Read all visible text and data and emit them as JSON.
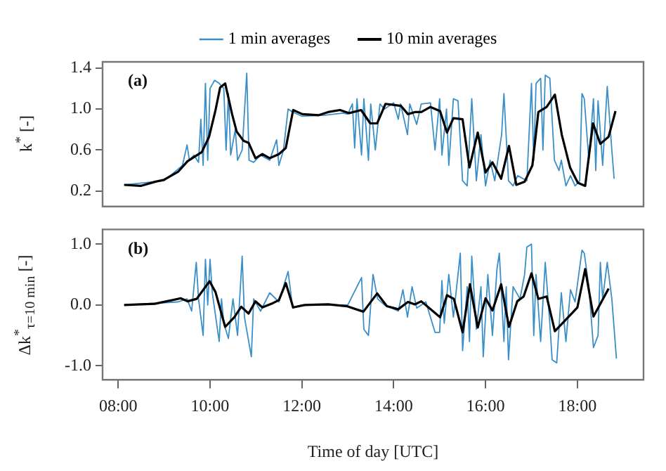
{
  "chart_data": [
    {
      "type": "line",
      "legend": "top",
      "ylabel": "k$^{*}$ [-]",
      "annotations": [
        "(a)"
      ],
      "xlim": [
        7.66,
        19.44
      ],
      "ylim": [
        0.05,
        1.46
      ],
      "yticks": [
        0.2,
        0.6,
        {
          "value": 1,
          "label": "1.0"
        },
        1.4
      ],
      "tick_labels": "y",
      "grid": false,
      "series": [
        {
          "name": "1 min averages",
          "color": "#3a8fc8",
          "x": [
            8.13,
            9.0,
            9.4,
            9.5,
            9.55,
            9.65,
            9.75,
            9.8,
            9.85,
            9.9,
            9.95,
            10.0,
            10.1,
            10.2,
            10.3,
            10.35,
            10.4,
            10.45,
            10.55,
            10.6,
            10.7,
            10.8,
            10.85,
            10.95,
            11.1,
            11.3,
            11.45,
            11.5,
            11.6,
            11.7,
            11.8,
            12.0,
            12.5,
            12.9,
            13.0,
            13.1,
            13.15,
            13.2,
            13.3,
            13.35,
            13.45,
            13.5,
            13.6,
            13.7,
            13.8,
            14.0,
            14.1,
            14.15,
            14.3,
            14.35,
            14.5,
            14.6,
            14.8,
            14.9,
            15.0,
            15.05,
            15.15,
            15.2,
            15.3,
            15.4,
            15.5,
            15.6,
            15.7,
            15.8,
            15.9,
            16.0,
            16.1,
            16.2,
            16.35,
            16.4,
            16.5,
            16.6,
            16.7,
            16.9,
            17.0,
            17.05,
            17.1,
            17.2,
            17.25,
            17.3,
            17.4,
            17.45,
            17.5,
            17.6,
            17.65,
            17.75,
            17.85,
            17.95,
            18.05,
            18.1,
            18.15,
            18.25,
            18.35,
            18.4,
            18.45,
            18.55,
            18.65,
            18.75,
            18.8
          ],
          "values": [
            0.26,
            0.3,
            0.45,
            0.65,
            0.5,
            0.55,
            0.48,
            0.9,
            0.45,
            1.25,
            0.5,
            1.2,
            1.28,
            1.25,
            1.2,
            0.6,
            1.15,
            0.55,
            0.8,
            0.5,
            0.6,
            1.35,
            0.5,
            0.48,
            0.55,
            0.5,
            0.7,
            0.45,
            0.6,
            1.0,
            0.97,
            0.93,
            0.94,
            0.96,
            0.95,
            1.05,
            0.62,
            1.1,
            0.55,
            1.1,
            0.5,
            1.05,
            0.6,
            1.05,
            1.0,
            1.06,
            0.9,
            1.05,
            0.75,
            1.05,
            0.85,
            1.05,
            1.06,
            0.6,
            1.1,
            0.55,
            1.0,
            0.45,
            1.1,
            1.08,
            0.3,
            0.25,
            1.1,
            0.3,
            0.75,
            0.25,
            0.5,
            0.3,
            0.75,
            1.15,
            0.3,
            0.25,
            0.35,
            0.3,
            1.25,
            0.5,
            1.25,
            1.3,
            0.6,
            1.33,
            1.3,
            0.9,
            0.5,
            0.4,
            0.5,
            0.25,
            0.35,
            0.25,
            0.3,
            1.15,
            1.1,
            0.5,
            1.1,
            0.4,
            1.08,
            0.45,
            1.22,
            0.6,
            0.32
          ]
        },
        {
          "name": "10 min averages",
          "color": "#000000",
          "x": [
            8.13,
            8.49,
            8.8,
            9.0,
            9.31,
            9.51,
            9.82,
            9.98,
            10.12,
            10.22,
            10.33,
            10.48,
            10.58,
            10.73,
            10.84,
            10.99,
            11.14,
            11.3,
            11.5,
            11.65,
            11.81,
            12.01,
            12.37,
            12.57,
            12.83,
            13.03,
            13.29,
            13.49,
            13.64,
            13.82,
            14.16,
            14.31,
            14.46,
            14.6,
            14.8,
            15.01,
            15.16,
            15.3,
            15.5,
            15.65,
            15.83,
            16.0,
            16.15,
            16.34,
            16.51,
            16.67,
            16.85,
            17.02,
            17.15,
            17.33,
            17.51,
            17.66,
            17.84,
            18.01,
            18.17,
            18.34,
            18.5,
            18.68,
            18.83
          ],
          "values": [
            0.26,
            0.25,
            0.29,
            0.31,
            0.39,
            0.49,
            0.58,
            0.73,
            0.99,
            1.21,
            1.25,
            0.95,
            0.78,
            0.69,
            0.67,
            0.52,
            0.56,
            0.52,
            0.56,
            0.62,
            0.99,
            0.95,
            0.94,
            0.97,
            0.99,
            0.96,
            0.99,
            0.86,
            0.86,
            1.05,
            1.03,
            0.95,
            0.97,
            0.97,
            1.02,
            0.98,
            0.77,
            0.91,
            0.9,
            0.43,
            0.77,
            0.38,
            0.48,
            0.32,
            0.64,
            0.26,
            0.29,
            0.45,
            0.97,
            1.02,
            1.14,
            0.75,
            0.43,
            0.28,
            0.25,
            0.86,
            0.66,
            0.73,
            0.98
          ]
        }
      ]
    },
    {
      "type": "line",
      "ylabel": "Δk$^{*}$$_{τ=10 min}$ [-]",
      "xlabel": "Time of day [UTC]",
      "annotations": [
        "(b)"
      ],
      "xlim": [
        7.66,
        19.44
      ],
      "xticks": [
        {
          "value": 8,
          "label": "08:00"
        },
        {
          "value": 10,
          "label": "10:00"
        },
        {
          "value": 12,
          "label": "12:00"
        },
        {
          "value": 14,
          "label": "14:00"
        },
        {
          "value": 16,
          "label": "16:00"
        },
        {
          "value": 18,
          "label": "18:00"
        }
      ],
      "ylim": [
        -1.23,
        1.24
      ],
      "yticks": [
        {
          "value": -1,
          "label": "-1.0"
        },
        {
          "value": 0,
          "label": "0.0"
        },
        {
          "value": 1,
          "label": "1.0"
        }
      ],
      "grid": false,
      "series": [
        {
          "color": "#3a8fc8",
          "x": [
            8.13,
            9.3,
            9.5,
            9.6,
            9.7,
            9.75,
            9.85,
            9.9,
            9.95,
            10.0,
            10.05,
            10.2,
            10.25,
            10.3,
            10.4,
            10.5,
            10.6,
            10.7,
            10.75,
            10.9,
            10.95,
            11.1,
            11.3,
            11.5,
            11.6,
            11.7,
            11.8,
            12.0,
            13.0,
            13.3,
            13.35,
            13.45,
            13.55,
            13.65,
            13.8,
            14.1,
            14.2,
            14.3,
            14.4,
            14.5,
            14.7,
            14.9,
            15.0,
            15.05,
            15.1,
            15.2,
            15.3,
            15.45,
            15.5,
            15.6,
            15.65,
            15.7,
            15.8,
            15.9,
            15.95,
            16.05,
            16.15,
            16.25,
            16.3,
            16.4,
            16.45,
            16.5,
            16.6,
            16.75,
            16.85,
            16.9,
            17.0,
            17.05,
            17.1,
            17.2,
            17.3,
            17.4,
            17.45,
            17.55,
            17.65,
            17.75,
            17.85,
            17.95,
            18.1,
            18.15,
            18.25,
            18.35,
            18.45,
            18.5,
            18.55,
            18.65,
            18.75,
            18.85
          ],
          "values": [
            0,
            0.05,
            0.1,
            -0.1,
            0.7,
            0.1,
            -0.5,
            0.75,
            0,
            0.75,
            0.2,
            -0.6,
            0.1,
            -0.3,
            -0.55,
            0.1,
            -0.5,
            0.8,
            -0.2,
            -0.85,
            0.1,
            -0.1,
            0.2,
            0.05,
            0.3,
            0.55,
            -0.05,
            0,
            0,
            0.45,
            -0.4,
            -0.5,
            0.5,
            0.1,
            0,
            -0.1,
            0.25,
            -0.2,
            0.3,
            -0.05,
            0.05,
            -0.45,
            -0.45,
            0.4,
            -0.3,
            0.5,
            -0.2,
            0.85,
            -0.75,
            0.3,
            -0.6,
            0.8,
            -0.4,
            0.3,
            -0.85,
            0.5,
            -0.5,
            0.6,
            0.85,
            -0.6,
            0.3,
            -0.9,
            0.3,
            0.1,
            0.5,
            0.95,
            1.0,
            -0.5,
            0.5,
            -0.6,
            0.7,
            -0.3,
            -0.9,
            -0.95,
            0.2,
            -0.6,
            0.25,
            0.05,
            0.9,
            0.85,
            0.3,
            -0.7,
            -0.5,
            0.7,
            0.1,
            0.7,
            0.1,
            -0.88
          ]
        },
        {
          "color": "#000000",
          "x": [
            8.13,
            8.8,
            9.36,
            9.51,
            9.71,
            9.99,
            10.12,
            10.33,
            10.53,
            10.68,
            10.84,
            10.99,
            11.14,
            11.34,
            11.5,
            11.65,
            11.81,
            12.06,
            12.57,
            12.98,
            13.34,
            13.64,
            13.85,
            14.1,
            14.31,
            14.46,
            14.6,
            15.01,
            15.16,
            15.31,
            15.5,
            15.66,
            15.83,
            16.0,
            16.15,
            16.34,
            16.51,
            16.69,
            16.83,
            17.0,
            17.15,
            17.33,
            17.51,
            18.0,
            18.17,
            18.35,
            18.68
          ],
          "values": [
            0,
            0.02,
            0.11,
            0.06,
            0.1,
            0.39,
            0.21,
            -0.36,
            -0.2,
            -0.03,
            -0.14,
            0.06,
            -0.04,
            0.02,
            0.08,
            0.36,
            -0.04,
            0,
            0.01,
            -0.02,
            -0.11,
            0.19,
            -0.02,
            -0.07,
            0.05,
            0.01,
            0.06,
            -0.2,
            0.16,
            0.1,
            -0.45,
            0.34,
            -0.37,
            0.11,
            -0.09,
            0.34,
            -0.36,
            0.06,
            0.14,
            0.52,
            0.1,
            0.14,
            -0.43,
            -0.04,
            0.59,
            -0.19,
            0.27
          ]
        }
      ]
    }
  ]
}
